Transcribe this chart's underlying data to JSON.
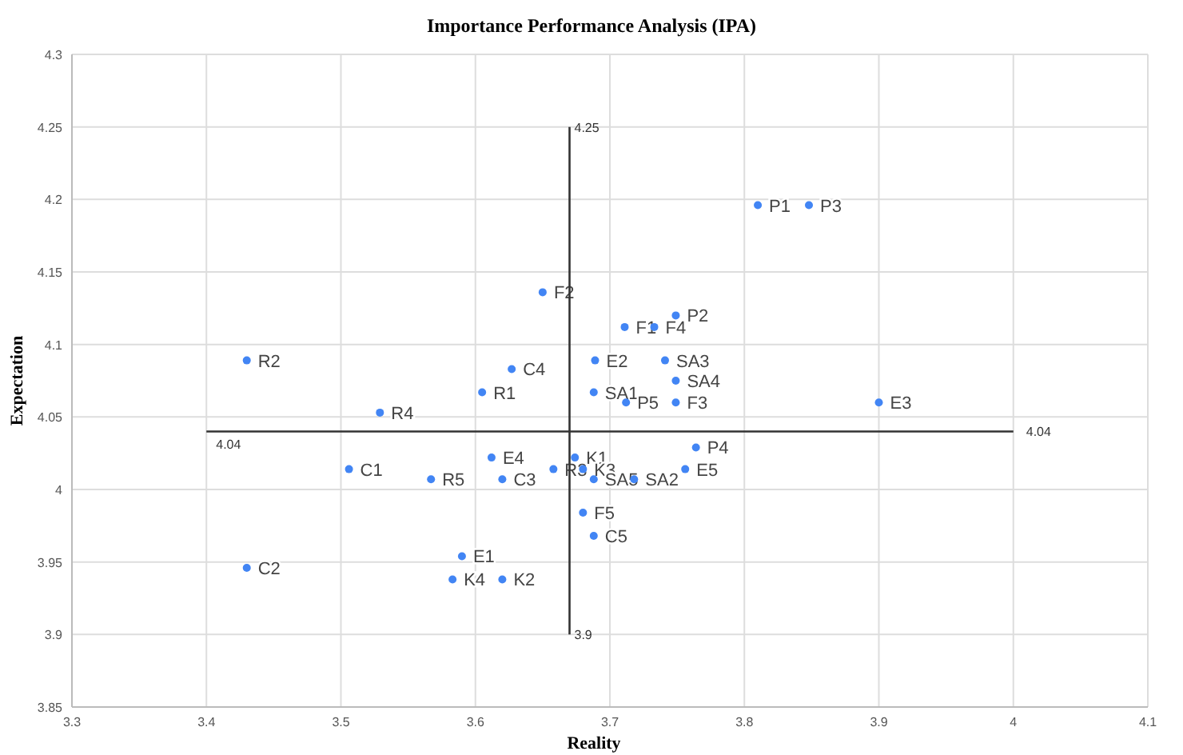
{
  "chart_data": {
    "type": "scatter",
    "title": "Importance Performance Analysis (IPA)",
    "xlabel": "Reality",
    "ylabel": "Expectation",
    "xlim": [
      3.3,
      4.1
    ],
    "xticks": [
      3.3,
      3.4,
      3.5,
      3.6,
      3.7,
      3.8,
      3.9,
      4,
      4.1
    ],
    "ylim": [
      3.85,
      4.3
    ],
    "yticks": [
      3.85,
      3.9,
      3.95,
      4,
      4.05,
      4.1,
      4.15,
      4.2,
      4.25,
      4.3
    ],
    "grid": true,
    "series": [
      {
        "marker": "circle",
        "color": "#4285f4",
        "x": [
          3.81,
          3.848,
          3.65,
          3.711,
          3.733,
          3.749,
          3.43,
          3.627,
          3.689,
          3.741,
          3.605,
          3.688,
          3.749,
          3.712,
          3.749,
          3.9,
          3.529,
          3.764,
          3.674,
          3.612,
          3.506,
          3.658,
          3.68,
          3.756,
          3.567,
          3.62,
          3.688,
          3.718,
          3.68,
          3.688,
          3.59,
          3.43,
          3.583,
          3.62
        ],
        "values": [
          4.196,
          4.196,
          4.136,
          4.112,
          4.112,
          4.12,
          4.089,
          4.083,
          4.089,
          4.089,
          4.067,
          4.067,
          4.075,
          4.06,
          4.06,
          4.06,
          4.053,
          4.029,
          4.022,
          4.022,
          4.014,
          4.014,
          4.014,
          4.014,
          4.007,
          4.007,
          4.007,
          4.007,
          3.984,
          3.968,
          3.954,
          3.946,
          3.938,
          3.938
        ],
        "value_labels": [
          "P1",
          "P3",
          "F2",
          "F1",
          "F4",
          "P2",
          "R2",
          "C4",
          "E2",
          "SA3",
          "R1",
          "SA1",
          "SA4",
          "P5",
          "F3",
          "E3",
          "R4",
          "P4",
          "K1",
          "E4",
          "C1",
          "R3",
          "K3",
          "E5",
          "R5",
          "C3",
          "SA5",
          "SA2",
          "F5",
          "C5",
          "E1",
          "C2",
          "K4",
          "K2"
        ]
      },
      {
        "type": "line",
        "color": "#333333",
        "x": [
          3.67,
          3.67
        ],
        "values": [
          3.9,
          4.25
        ]
      },
      {
        "type": "line",
        "color": "#333333",
        "x": [
          3.4,
          4
        ],
        "values": [
          4.04,
          4.04
        ]
      }
    ],
    "annotations": [
      {
        "text": "4.25",
        "x": 3.67,
        "y": 4.25
      },
      {
        "text": "3.9",
        "x": 3.67,
        "y": 3.9
      },
      {
        "text": "4.04",
        "x": 3.4,
        "y": 4.04
      },
      {
        "text": "4.04",
        "x": 4,
        "y": 4.04
      }
    ]
  }
}
